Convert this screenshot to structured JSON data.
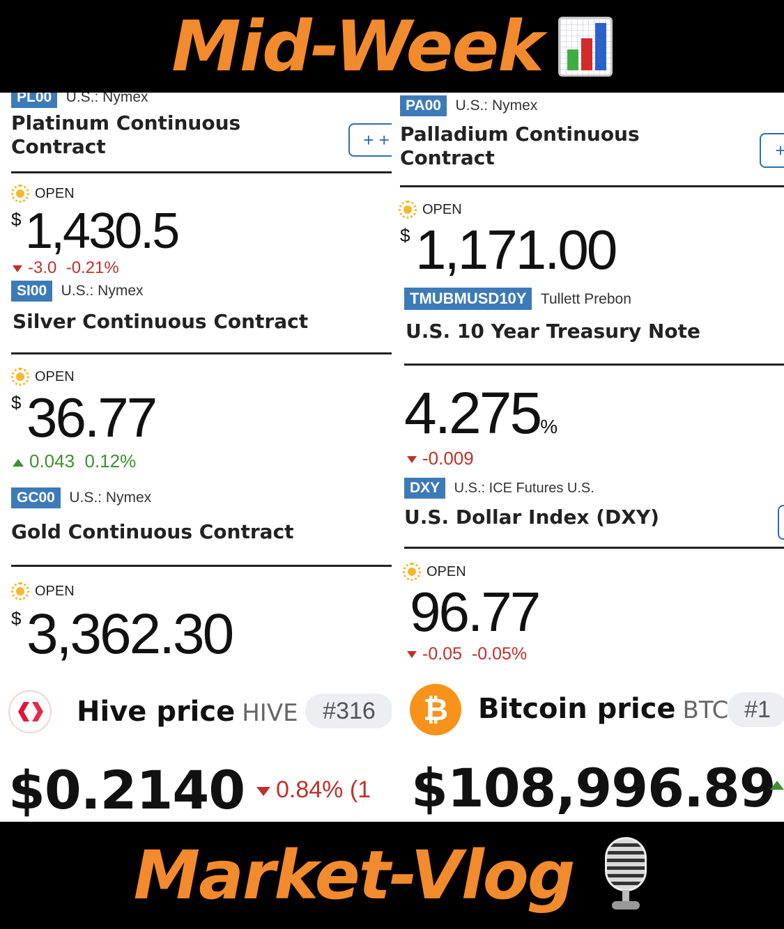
{
  "banner_top": {
    "title": "Mid-Week",
    "emoji": "bar-chart-icon"
  },
  "banner_bottom": {
    "title": "Market-Vlog",
    "emoji": "microphone-icon"
  },
  "colors": {
    "banner_text": "#f28a2e",
    "ticker_bg": "#3d7ab8",
    "down": "#c0302b",
    "up": "#3f8f32",
    "btc": "#f7931a",
    "hive": "#e31337"
  },
  "left": {
    "platinum": {
      "ticker": "PL00",
      "exchange": "U.S.: Nymex",
      "title_line1": "Platinum Continuous",
      "title_line2": "Contract",
      "plus": "+ +",
      "status": "OPEN",
      "currency": "$",
      "price": "1,430.5",
      "change": "-3.0",
      "change_pct": "-0.21%",
      "direction": "down"
    },
    "silver": {
      "ticker": "SI00",
      "exchange": "U.S.: Nymex",
      "title": "Silver Continuous Contract",
      "status": "OPEN",
      "currency": "$",
      "price": "36.77",
      "change": "0.043",
      "change_pct": "0.12%",
      "direction": "up"
    },
    "gold": {
      "ticker": "GC00",
      "exchange": "U.S.: Nymex",
      "title": "Gold Continuous Contract",
      "status": "OPEN",
      "currency": "$",
      "price": "3,362.30"
    },
    "hive": {
      "name": "Hive price",
      "symbol": "HIVE",
      "rank": "#316",
      "price": "$0.2140",
      "change_pct": "0.84% (1"
    }
  },
  "right": {
    "palladium": {
      "ticker": "PA00",
      "exchange": "U.S.: Nymex",
      "title_line1": "Palladium Continuous",
      "title_line2": "Contract",
      "plus": "+",
      "status": "OPEN",
      "currency": "$",
      "price": "1,171.00"
    },
    "treasury": {
      "ticker": "TMUBMUSD10Y",
      "exchange": "Tullett Prebon",
      "title": "U.S. 10 Year Treasury Note",
      "price": "4.275",
      "unit": "%",
      "change": "-0.009",
      "direction": "down"
    },
    "dxy": {
      "ticker": "DXY",
      "exchange": "U.S.: ICE Futures U.S.",
      "title": "U.S. Dollar Index (DXY)",
      "status": "OPEN",
      "price": "96.77",
      "change": "-0.05",
      "change_pct": "-0.05%",
      "direction": "down"
    },
    "bitcoin": {
      "name": "Bitcoin price",
      "symbol": "BTC",
      "rank": "#1",
      "price": "$108,996.89",
      "icon_glyph": "₿"
    }
  }
}
